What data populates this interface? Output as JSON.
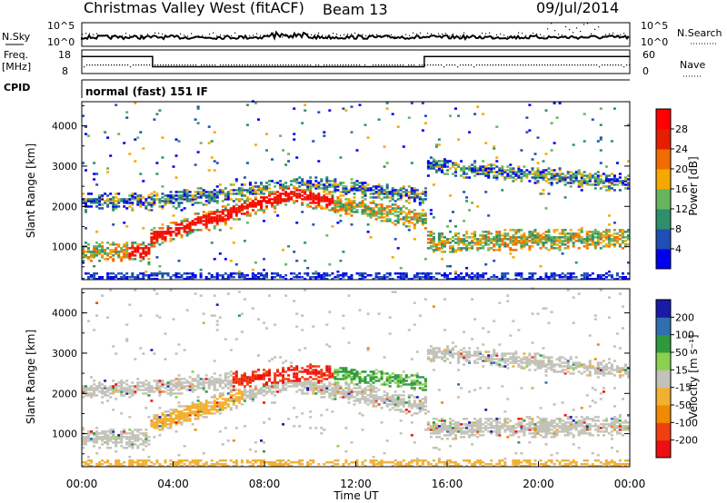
{
  "header": {
    "title": "Christmas Valley West (fitACF)",
    "beam": "Beam 13",
    "date": "09/Jul/2014"
  },
  "chart_data": [
    {
      "type": "line",
      "panel": "noise",
      "left_label": "N.Sky",
      "right_label": "N.Search",
      "left_ticks": [
        "10^5",
        "10^0"
      ],
      "right_ticks": [
        "10^5",
        "10^0"
      ]
    },
    {
      "type": "line",
      "panel": "frequency",
      "left_label_line1": "Freq.",
      "left_label_line2": "[MHz]",
      "right_label": "Nave",
      "left_ticks": [
        "18",
        "8"
      ],
      "right_ticks": [
        "60",
        "0"
      ],
      "ylim": [
        8,
        18
      ],
      "freq_steps": [
        {
          "t0": 0,
          "t1": 3.1,
          "value": 15.2
        },
        {
          "t0": 3.1,
          "t1": 15.0,
          "value": 10.9
        },
        {
          "t0": 15.0,
          "t1": 24,
          "value": 15.2
        }
      ]
    },
    {
      "type": "table",
      "panel": "cpid",
      "label": "CPID",
      "mode": "normal (fast) 151 IF"
    },
    {
      "type": "heatmap",
      "panel": "power",
      "ylabel": "Slant Range [km]",
      "ylim": [
        180,
        4600
      ],
      "xlim": [
        0,
        24
      ],
      "yticks": [
        "1000",
        "2000",
        "3000",
        "4000"
      ],
      "colorbar_label": "Power [dB]",
      "colorbar_ticks": [
        "4",
        "8",
        "12",
        "16",
        "20",
        "24",
        "28"
      ],
      "colors": [
        "#0000ee",
        "#1f4fb4",
        "#2d8f6b",
        "#66b55e",
        "#f6a800",
        "#f06b00",
        "#e61e00",
        "#ff0000"
      ]
    },
    {
      "type": "heatmap",
      "panel": "velocity",
      "ylabel": "Slant Range [km]",
      "ylim": [
        180,
        4600
      ],
      "xlim": [
        0,
        24
      ],
      "yticks": [
        "1000",
        "2000",
        "3000",
        "4000"
      ],
      "xticks": [
        "00:00",
        "04:00",
        "08:00",
        "12:00",
        "16:00",
        "20:00",
        "00:00"
      ],
      "xlabel": "Time UT",
      "colorbar_label": "Velocity [m s⁻¹]",
      "colorbar_ticks": [
        "200",
        "100",
        "50",
        "15",
        "-15",
        "-50",
        "-100",
        "-200"
      ],
      "colors": [
        "#1a1aa8",
        "#2f6fb0",
        "#2e9a3e",
        "#8cd050",
        "#c2c2b8",
        "#f2b030",
        "#f08a00",
        "#f04010",
        "#ee1010"
      ]
    }
  ]
}
